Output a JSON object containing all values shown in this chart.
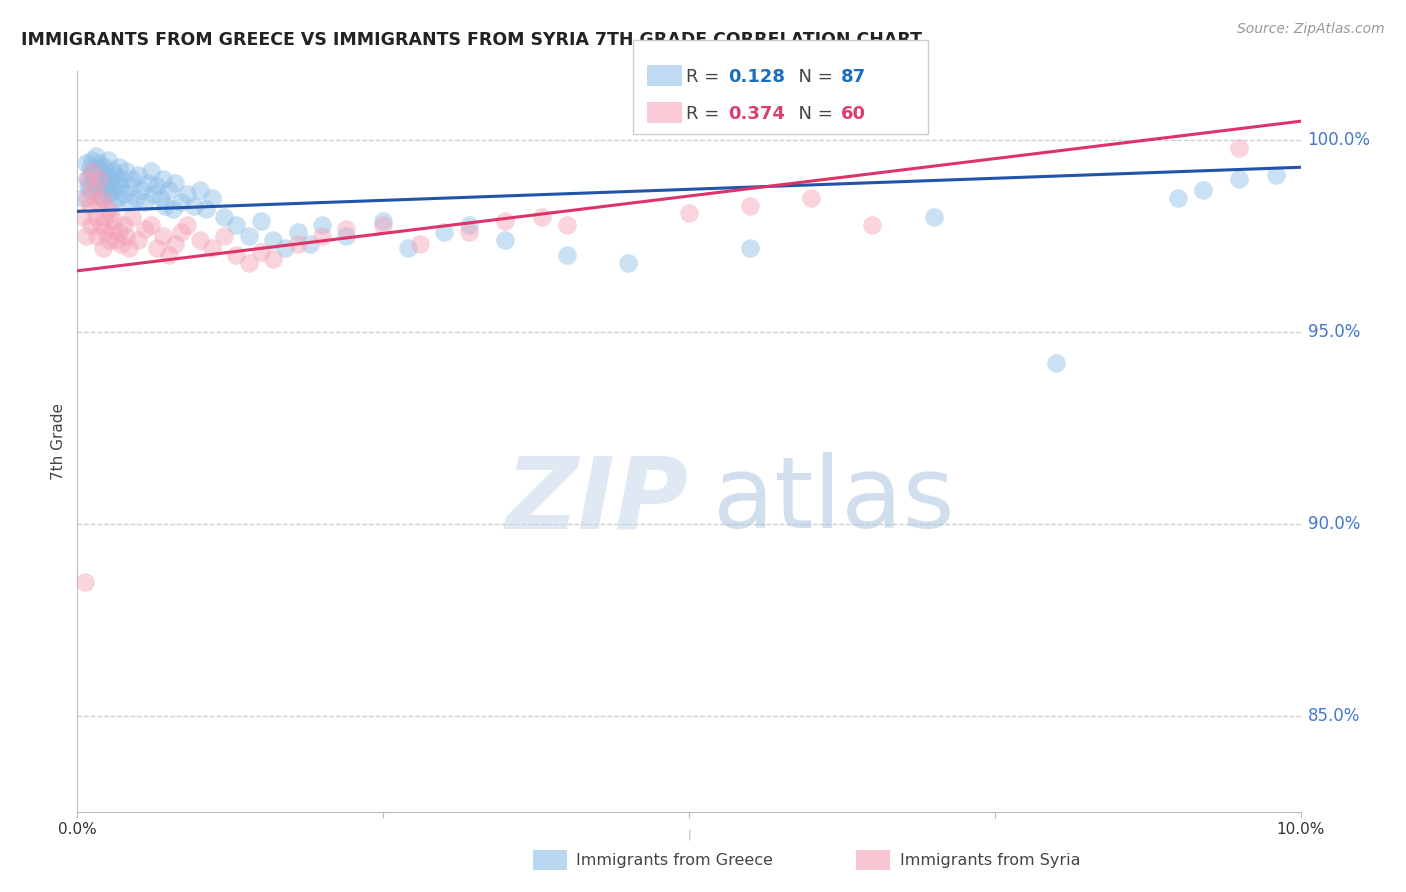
{
  "title": "IMMIGRANTS FROM GREECE VS IMMIGRANTS FROM SYRIA 7TH GRADE CORRELATION CHART",
  "source": "Source: ZipAtlas.com",
  "ylabel": "7th Grade",
  "ylabel_right_ticks": [
    100.0,
    95.0,
    90.0,
    85.0
  ],
  "xmin": 0.0,
  "xmax": 10.0,
  "ymin": 82.5,
  "ymax": 101.8,
  "legend_R": [
    0.128,
    0.374
  ],
  "legend_N": [
    87,
    60
  ],
  "color_greece": "#8bbde8",
  "color_syria": "#f4a0b5",
  "color_greece_line": "#2255aa",
  "color_syria_line": "#dd3366",
  "color_greece_legend_text": "#1a6ebd",
  "color_syria_legend_text": "#d9406a",
  "color_right_axis": "#4477cc",
  "grid_color": "#cccccc",
  "background_color": "#ffffff",
  "greece_line_x": [
    0.0,
    10.0
  ],
  "greece_line_y": [
    98.15,
    99.3
  ],
  "syria_line_x": [
    0.0,
    10.0
  ],
  "syria_line_y": [
    96.6,
    100.5
  ],
  "greece_scatter_x": [
    0.05,
    0.08,
    0.09,
    0.1,
    0.1,
    0.12,
    0.13,
    0.14,
    0.15,
    0.15,
    0.16,
    0.17,
    0.18,
    0.18,
    0.19,
    0.2,
    0.2,
    0.21,
    0.22,
    0.23,
    0.24,
    0.25,
    0.25,
    0.26,
    0.27,
    0.28,
    0.29,
    0.3,
    0.31,
    0.32,
    0.33,
    0.34,
    0.35,
    0.36,
    0.38,
    0.4,
    0.42,
    0.44,
    0.45,
    0.48,
    0.5,
    0.52,
    0.55,
    0.58,
    0.6,
    0.62,
    0.65,
    0.68,
    0.7,
    0.72,
    0.75,
    0.78,
    0.8,
    0.85,
    0.9,
    0.95,
    1.0,
    1.05,
    1.1,
    1.2,
    1.3,
    1.4,
    1.5,
    1.6,
    1.7,
    1.8,
    1.9,
    2.0,
    2.2,
    2.5,
    2.7,
    3.0,
    3.2,
    3.5,
    4.0,
    4.5,
    5.5,
    7.0,
    8.0,
    9.0,
    9.2,
    9.5,
    9.8,
    0.07,
    0.11,
    0.16,
    0.21
  ],
  "greece_scatter_y": [
    98.5,
    99.0,
    98.8,
    99.3,
    98.7,
    99.5,
    99.2,
    98.9,
    99.6,
    99.0,
    98.8,
    99.1,
    99.4,
    98.6,
    99.2,
    99.0,
    98.5,
    98.9,
    99.3,
    98.7,
    99.1,
    98.8,
    99.5,
    98.6,
    99.0,
    98.4,
    99.2,
    98.7,
    99.1,
    98.9,
    98.5,
    99.3,
    98.8,
    99.0,
    98.6,
    99.2,
    98.4,
    98.8,
    99.0,
    98.5,
    99.1,
    98.7,
    98.4,
    98.9,
    99.2,
    98.6,
    98.8,
    98.5,
    99.0,
    98.3,
    98.7,
    98.2,
    98.9,
    98.4,
    98.6,
    98.3,
    98.7,
    98.2,
    98.5,
    98.0,
    97.8,
    97.5,
    97.9,
    97.4,
    97.2,
    97.6,
    97.3,
    97.8,
    97.5,
    97.9,
    97.2,
    97.6,
    97.8,
    97.4,
    97.0,
    96.8,
    97.2,
    98.0,
    94.2,
    98.5,
    98.7,
    99.0,
    99.1,
    99.4,
    99.1,
    99.3,
    98.8
  ],
  "syria_scatter_x": [
    0.05,
    0.07,
    0.08,
    0.09,
    0.1,
    0.11,
    0.12,
    0.13,
    0.15,
    0.16,
    0.17,
    0.18,
    0.19,
    0.2,
    0.21,
    0.22,
    0.23,
    0.25,
    0.26,
    0.27,
    0.28,
    0.3,
    0.32,
    0.34,
    0.36,
    0.38,
    0.4,
    0.42,
    0.45,
    0.5,
    0.55,
    0.6,
    0.65,
    0.7,
    0.75,
    0.8,
    0.85,
    0.9,
    1.0,
    1.1,
    1.2,
    1.3,
    1.4,
    1.5,
    1.6,
    1.8,
    2.0,
    2.2,
    2.5,
    2.8,
    3.2,
    3.5,
    3.8,
    4.0,
    5.0,
    5.5,
    6.0,
    6.5,
    9.5,
    0.06
  ],
  "syria_scatter_y": [
    98.0,
    97.5,
    98.5,
    99.0,
    98.3,
    97.8,
    99.2,
    98.7,
    98.0,
    97.5,
    98.4,
    99.0,
    97.8,
    98.5,
    97.2,
    98.0,
    97.6,
    98.2,
    97.4,
    98.1,
    97.7,
    97.9,
    97.4,
    97.6,
    97.3,
    97.8,
    97.5,
    97.2,
    98.0,
    97.4,
    97.7,
    97.8,
    97.2,
    97.5,
    97.0,
    97.3,
    97.6,
    97.8,
    97.4,
    97.2,
    97.5,
    97.0,
    96.8,
    97.1,
    96.9,
    97.3,
    97.5,
    97.7,
    97.8,
    97.3,
    97.6,
    97.9,
    98.0,
    97.8,
    98.1,
    98.3,
    98.5,
    97.8,
    99.8,
    88.5
  ]
}
